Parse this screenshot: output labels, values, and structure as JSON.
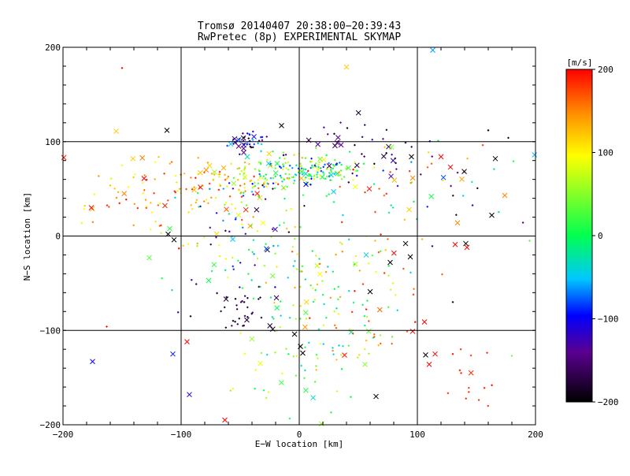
{
  "chart_data": {
    "type": "scatter",
    "title": "Tromsø 20140407 20:38:00−20:39:43",
    "subtitle": "RwPretec (8p) EXPERIMENTAL SKYMAP",
    "xlabel": "E−W location [km]",
    "ylabel": "N−S location [km]",
    "xlim": [
      -200,
      200
    ],
    "ylim": [
      -200,
      200
    ],
    "xticks": [
      "−200",
      "−100",
      "0",
      "100",
      "200"
    ],
    "yticks": [
      "200",
      "100",
      "0",
      "−100",
      "−200"
    ],
    "grid": true,
    "colorbar": {
      "label": "[m/s]",
      "range": [
        -200,
        200
      ],
      "ticks": [
        "200",
        "100",
        "0",
        "−100",
        "−200"
      ],
      "colors": [
        "#000000",
        "#5a0090",
        "#0000ff",
        "#00c8ff",
        "#00ff50",
        "#ffff00",
        "#ff9600",
        "#ff0000"
      ]
    },
    "clusters": [
      {
        "cx": -45,
        "cy": 100,
        "sx": 7,
        "sy": 5,
        "n": 45,
        "vmin": -200,
        "vmax": -40
      },
      {
        "cx": 8,
        "cy": 68,
        "sx": 22,
        "sy": 9,
        "n": 150,
        "vmin": -100,
        "vmax": 100
      },
      {
        "cx": -40,
        "cy": 62,
        "sx": 25,
        "sy": 10,
        "n": 70,
        "vmin": 0,
        "vmax": 150
      },
      {
        "cx": -100,
        "cy": 45,
        "sx": 45,
        "sy": 22,
        "n": 130,
        "vmin": 80,
        "vmax": 200
      },
      {
        "cx": 50,
        "cy": 95,
        "sx": 30,
        "sy": 20,
        "n": 40,
        "vmin": -200,
        "vmax": -120
      },
      {
        "cx": 120,
        "cy": 55,
        "sx": 40,
        "sy": 25,
        "n": 45,
        "vmin": -200,
        "vmax": 200
      },
      {
        "cx": -50,
        "cy": 0,
        "sx": 30,
        "sy": 35,
        "n": 90,
        "vmin": -200,
        "vmax": 100
      },
      {
        "cx": 25,
        "cy": -60,
        "sx": 28,
        "sy": 50,
        "n": 130,
        "vmin": -50,
        "vmax": 150
      },
      {
        "cx": 60,
        "cy": -40,
        "sx": 30,
        "sy": 45,
        "n": 40,
        "vmin": 150,
        "vmax": 200
      },
      {
        "cx": -45,
        "cy": -80,
        "sx": 15,
        "sy": 12,
        "n": 30,
        "vmin": -200,
        "vmax": -150
      },
      {
        "cx": 140,
        "cy": -150,
        "sx": 15,
        "sy": 18,
        "n": 14,
        "vmin": 180,
        "vmax": 200
      },
      {
        "cx": -10,
        "cy": -140,
        "sx": 30,
        "sy": 35,
        "n": 40,
        "vmin": -50,
        "vmax": 100
      }
    ],
    "points": [
      {
        "x": -44,
        "y": 84,
        "v": -30,
        "m": "x"
      },
      {
        "x": -26,
        "y": 77,
        "v": -40,
        "m": "x"
      },
      {
        "x": -15,
        "y": 117,
        "v": -200,
        "m": "x"
      },
      {
        "x": -175,
        "y": -133,
        "v": -100,
        "m": "x"
      },
      {
        "x": -107,
        "y": -125,
        "v": -90,
        "m": "x"
      },
      {
        "x": -93,
        "y": -168,
        "v": -100,
        "m": "x"
      },
      {
        "x": -63,
        "y": -195,
        "v": 200,
        "m": "x"
      },
      {
        "x": -155,
        "y": 111,
        "v": 120,
        "m": "x"
      },
      {
        "x": -112,
        "y": 112,
        "v": -200,
        "m": "x"
      },
      {
        "x": 40,
        "y": 179,
        "v": 120,
        "m": "x"
      },
      {
        "x": 113,
        "y": 197,
        "v": -60,
        "m": "x"
      },
      {
        "x": 128,
        "y": 73,
        "v": 200,
        "m": "x"
      },
      {
        "x": 166,
        "y": 82,
        "v": -200,
        "m": "x"
      },
      {
        "x": 174,
        "y": 43,
        "v": 150,
        "m": "x"
      },
      {
        "x": 163,
        "y": 22,
        "v": -200,
        "m": "x"
      },
      {
        "x": 134,
        "y": 14,
        "v": 150,
        "m": "x"
      },
      {
        "x": 132,
        "y": -9,
        "v": 200,
        "m": "x"
      },
      {
        "x": 141,
        "y": -8,
        "v": -200,
        "m": "x"
      },
      {
        "x": 142,
        "y": -12,
        "v": 200,
        "m": "x"
      },
      {
        "x": -127,
        "y": -23,
        "v": 30,
        "m": "x"
      },
      {
        "x": -176,
        "y": 30,
        "v": 200,
        "m": "x"
      },
      {
        "x": -111,
        "y": 2,
        "v": -200,
        "m": "x"
      },
      {
        "x": -106,
        "y": -4,
        "v": -200,
        "m": "x"
      },
      {
        "x": -95,
        "y": -112,
        "v": 200,
        "m": "x"
      },
      {
        "x": 107,
        "y": -126,
        "v": -200,
        "m": "x"
      },
      {
        "x": 110,
        "y": -136,
        "v": 200,
        "m": "x"
      },
      {
        "x": 115,
        "y": -125,
        "v": 200,
        "m": "x"
      },
      {
        "x": 106,
        "y": -91,
        "v": 200,
        "m": "x"
      },
      {
        "x": 96,
        "y": -101,
        "v": 200,
        "m": "x"
      },
      {
        "x": 65,
        "y": -170,
        "v": -200,
        "m": "x"
      },
      {
        "x": 120,
        "y": 84,
        "v": 200,
        "m": "x"
      },
      {
        "x": 95,
        "y": 84,
        "v": -200,
        "m": "x"
      },
      {
        "x": 1,
        "y": -117,
        "v": -200,
        "m": "x"
      },
      {
        "x": -4,
        "y": -104,
        "v": -200,
        "m": "x"
      },
      {
        "x": 3,
        "y": -124,
        "v": -200,
        "m": "x"
      },
      {
        "x": 60,
        "y": -59,
        "v": -200,
        "m": "x"
      },
      {
        "x": 77,
        "y": -28,
        "v": -200,
        "m": "x"
      },
      {
        "x": 94,
        "y": -22,
        "v": -200,
        "m": "x"
      },
      {
        "x": 90,
        "y": -8,
        "v": -200,
        "m": "x"
      },
      {
        "x": 93,
        "y": 28,
        "v": 120,
        "m": "x"
      },
      {
        "x": -163,
        "y": -96,
        "v": 200,
        "m": "+"
      },
      {
        "x": -92,
        "y": -85,
        "v": -200,
        "m": "+"
      },
      {
        "x": 130,
        "y": -125,
        "v": 200,
        "m": "+"
      },
      {
        "x": 180,
        "y": -127,
        "v": 40,
        "m": "+"
      },
      {
        "x": 130,
        "y": -70,
        "v": -200,
        "m": "+"
      },
      {
        "x": 195,
        "y": -5,
        "v": 30,
        "m": "+"
      },
      {
        "x": 160,
        "y": 112,
        "v": -200,
        "m": "+"
      },
      {
        "x": 177,
        "y": 104,
        "v": -200,
        "m": "+"
      },
      {
        "x": -150,
        "y": 178,
        "v": 200,
        "m": "+"
      }
    ]
  }
}
